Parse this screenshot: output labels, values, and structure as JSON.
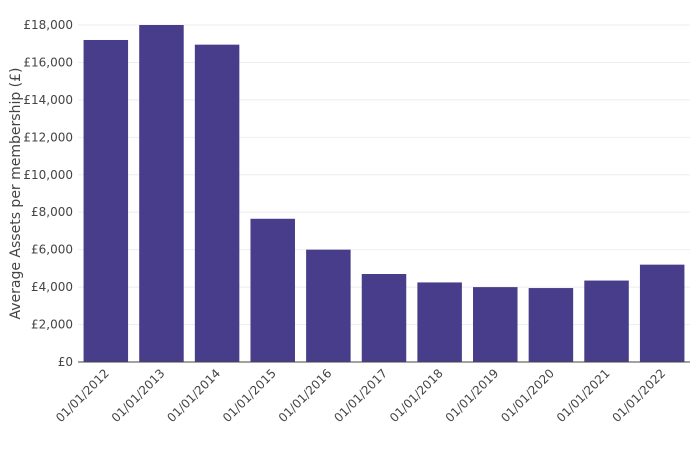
{
  "chart_data": {
    "type": "bar",
    "title": "",
    "xlabel": "",
    "ylabel": "Average Assets per membership (£)",
    "categories": [
      "01/01/2012",
      "01/01/2013",
      "01/01/2014",
      "01/01/2015",
      "01/01/2016",
      "01/01/2017",
      "01/01/2018",
      "01/01/2019",
      "01/01/2020",
      "01/01/2021",
      "01/01/2022"
    ],
    "values": [
      17200,
      18000,
      16950,
      7650,
      6000,
      4700,
      4250,
      4000,
      3950,
      4350,
      5200
    ],
    "ylim": [
      0,
      18000
    ],
    "yticks": [
      0,
      2000,
      4000,
      6000,
      8000,
      10000,
      12000,
      14000,
      16000,
      18000
    ],
    "ytick_labels": [
      "£0",
      "£2,000",
      "£4,000",
      "£6,000",
      "£8,000",
      "£10,000",
      "£12,000",
      "£14,000",
      "£16,000",
      "£18,000"
    ],
    "grid": true,
    "colors": {
      "bar": "#483d8b",
      "grid": "#eeeeee",
      "axis": "#444444"
    }
  }
}
